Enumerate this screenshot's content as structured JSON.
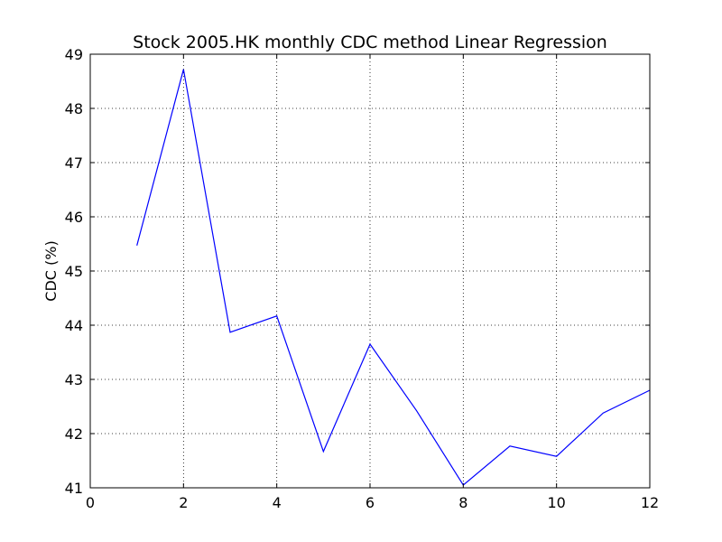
{
  "chart_data": {
    "type": "line",
    "title": "Stock 2005.HK monthly CDC method Linear Regression",
    "xlabel": "",
    "ylabel": "CDC (%)",
    "xlim": [
      0,
      12
    ],
    "ylim": [
      41,
      49
    ],
    "grid": true,
    "x_ticks": [
      "0",
      "2",
      "4",
      "6",
      "8",
      "10",
      "12"
    ],
    "y_ticks": [
      "41",
      "42",
      "43",
      "44",
      "45",
      "46",
      "47",
      "48",
      "49"
    ],
    "series": [
      {
        "color": "#0000ff",
        "x": [
          1,
          2,
          3,
          4,
          5,
          6,
          7,
          8,
          9,
          10,
          11,
          12
        ],
        "y": [
          45.47,
          48.72,
          43.87,
          44.17,
          41.67,
          43.65,
          42.42,
          41.05,
          41.77,
          41.58,
          42.38,
          42.8
        ]
      }
    ]
  }
}
